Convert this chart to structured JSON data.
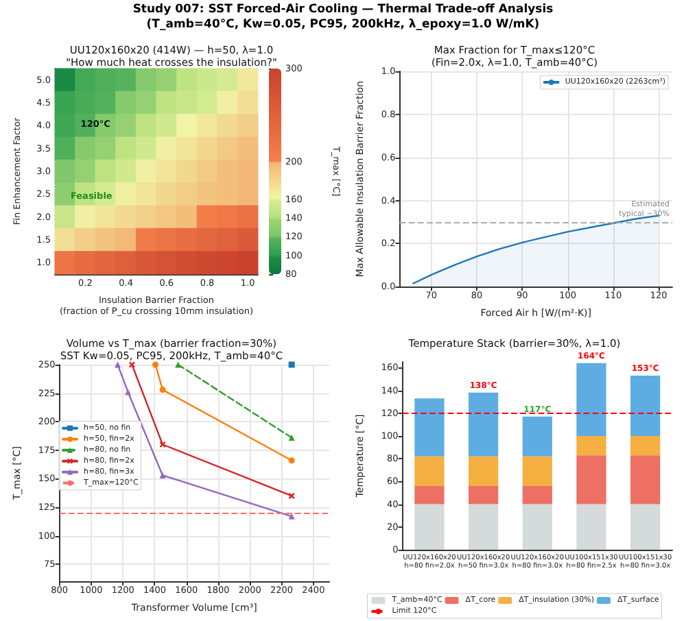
{
  "chart_data": [
    {
      "type": "heatmap",
      "title": "UU120x160x20 (414W) — h=50, λ=1.0\n\"How much heat crosses the insulation?\"",
      "xlabel": "Insulation Barrier Fraction\n(fraction of P_cu crossing 10mm insulation)",
      "ylabel": "Fin Enhancement Factor",
      "clabel": "T_max [°C]",
      "categories": [
        null,
        "0.2",
        null,
        "0.4",
        null,
        "0.6",
        null,
        "0.8",
        null,
        "1.0"
      ],
      "y_categories": [
        "5.0",
        "4.5",
        "4.0",
        "3.5",
        "3.0",
        "2.5",
        "2.0",
        "1.5",
        "1.0"
      ],
      "cells": [
        [
          95,
          110,
          115,
          118,
          125,
          135,
          145,
          152,
          158,
          170
        ],
        [
          105,
          112,
          117,
          125,
          135,
          145,
          150,
          157,
          165,
          175
        ],
        [
          108,
          116,
          125,
          135,
          145,
          155,
          162,
          170,
          178,
          185
        ],
        [
          115,
          125,
          135,
          145,
          155,
          165,
          172,
          180,
          188,
          195
        ],
        [
          122,
          135,
          145,
          155,
          165,
          172,
          180,
          188,
          195,
          199
        ],
        [
          130,
          145,
          158,
          165,
          172,
          180,
          186,
          192,
          196,
          199
        ],
        [
          150,
          165,
          172,
          178,
          184,
          190,
          196,
          205,
          215,
          225
        ],
        [
          175,
          185,
          192,
          198,
          210,
          220,
          230,
          240,
          250,
          260
        ],
        [
          220,
          235,
          245,
          255,
          265,
          275,
          285,
          290,
          295,
          300
        ]
      ],
      "clim": [
        80,
        300
      ],
      "cticks": [
        80,
        100,
        120,
        140,
        160,
        200,
        300
      ],
      "annotations": [
        "Study 007: SST Forced-Air Cooling — Thermal Trade-off Analysis\n(T_amb=40°C, Kw=0.05, PC95, 200kHz, λ_epoxy=1.0 W/mK)",
        "120°C",
        "Feasible"
      ]
    },
    {
      "type": "area",
      "title": "Max Fraction for T_max≤120°C\n(Fin=2.0x, λ=1.0, T_amb=40°C)",
      "xlabel": "Forced Air h [W/(m²·K)]",
      "ylabel": "Max Allowable Insulation Barrier Fraction",
      "series": [
        {
          "name": "UU120x160x20 (2263cm³)",
          "color": "#1f77b4",
          "x": [
            66,
            70,
            75,
            80,
            85,
            90,
            95,
            100,
            105,
            110,
            115,
            120
          ],
          "values": [
            0.015,
            0.055,
            0.1,
            0.14,
            0.175,
            0.205,
            0.23,
            0.255,
            0.275,
            0.295,
            0.315,
            0.33
          ]
        }
      ],
      "xlim": [
        63,
        123
      ],
      "xticks": [
        70,
        80,
        90,
        100,
        110,
        120
      ],
      "ylim": [
        0,
        1
      ],
      "yticks": [
        {
          "value": 0,
          "label": "0.0"
        },
        0.2,
        0.4,
        0.6,
        0.8,
        {
          "value": 1,
          "label": "1.0"
        }
      ],
      "ref_lines": [
        {
          "axis": "y",
          "value": 0.3,
          "label": "Estimated\ntypical ~30%",
          "color": "#aaaaaa",
          "line_style": "dashed"
        }
      ],
      "legend": "top right",
      "grid": true
    },
    {
      "type": "line",
      "title": "Volume vs T_max (barrier fraction=30%)\nSST Kw=0.05, PC95, 200kHz, T_amb=40°C",
      "xlabel": "Transformer Volume [cm³]",
      "ylabel": "T_max [°C]",
      "series": [
        {
          "name": "h=50, no fin",
          "color": "#1f77b4",
          "marker": "square",
          "x": [
            2263
          ],
          "values": [
            250
          ]
        },
        {
          "name": "h=50, fin=2x",
          "color": "#ff7f0e",
          "marker": "circle",
          "x": [
            1405,
            1450,
            2263
          ],
          "values": [
            250,
            228,
            166
          ]
        },
        {
          "name": "h=80, no fin",
          "color": "#2ca02c",
          "marker": "triangle",
          "line_style": "dashed",
          "x": [
            1548,
            2263
          ],
          "values": [
            250,
            186
          ]
        },
        {
          "name": "h=80, fin=2x",
          "color": "#d62728",
          "marker": "cross",
          "x": [
            1257,
            1450,
            2263
          ],
          "values": [
            250,
            180,
            135
          ]
        },
        {
          "name": "h=80, fin=3x",
          "color": "#9467bd",
          "marker": "triangle",
          "x": [
            1167,
            1232,
            1450,
            2263
          ],
          "values": [
            250,
            226,
            153,
            117
          ]
        }
      ],
      "xlim": [
        800,
        2500
      ],
      "xticks": [
        800,
        1000,
        1200,
        1400,
        1600,
        1800,
        2000,
        2200,
        2400
      ],
      "ylim": [
        60,
        250
      ],
      "yticks": [
        75,
        100,
        125,
        150,
        175,
        200,
        225,
        250
      ],
      "ref_lines": [
        {
          "axis": "y",
          "value": 120,
          "label": "T_max=120°C",
          "color": "#ff6b6b",
          "line_style": "dashed"
        }
      ],
      "legend": "left",
      "grid": true
    },
    {
      "type": "bar",
      "stacked": true,
      "title": "Temperature Stack (barrier=30%, λ=1.0)",
      "ylabel": "Temperature [°C]",
      "categories": [
        "UU120x160x20\nh=80 fin=2.0x",
        "UU120x160x20\nh=50 fin=3.0x",
        "UU120x160x20\nh=80 fin=3.0x",
        "UU100x151x30\nh=80 fin=2.5x",
        "UU100x151x30\nh=80 fin=3.0x"
      ],
      "series": [
        {
          "name": "T_amb=40°C",
          "color": "#d5dbdb",
          "values": [
            40,
            40,
            40,
            40,
            40
          ]
        },
        {
          "name": "ΔT_core",
          "color": "#ec7063",
          "values": [
            16,
            16,
            16,
            43,
            43
          ]
        },
        {
          "name": "ΔT_insulation (30%)",
          "color": "#f5b041",
          "values": [
            26,
            26,
            26,
            17,
            17
          ]
        },
        {
          "name": "ΔT_surface",
          "color": "#5dade2",
          "values": [
            51,
            56,
            35,
            64,
            53
          ]
        }
      ],
      "totals": [
        null,
        "138°C",
        "117°C",
        "164°C",
        "153°C"
      ],
      "ylim": [
        0,
        165
      ],
      "yticks": [
        0,
        20,
        40,
        60,
        80,
        100,
        120,
        140,
        160
      ],
      "ref_lines": [
        {
          "axis": "y",
          "value": 120,
          "label": "Limit 120°C",
          "color": "#ff0000",
          "line_style": "dashed"
        }
      ],
      "legend": "bottom"
    }
  ]
}
